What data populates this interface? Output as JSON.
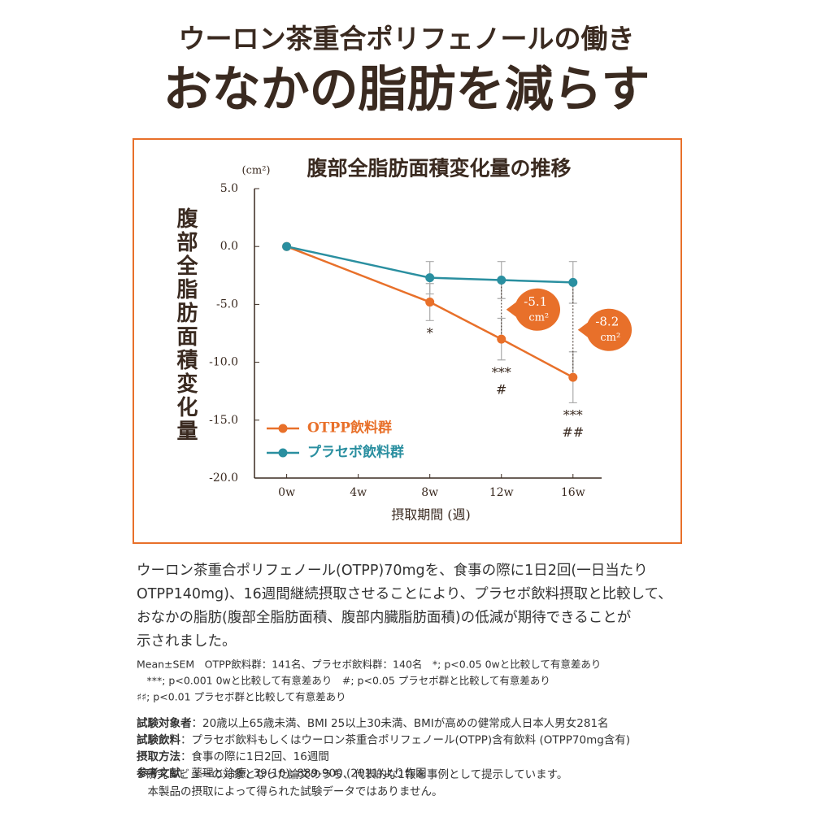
{
  "header": {
    "subtitle": "ウーロン茶重合ポリフェノールの働き",
    "title": "おなかの脂肪を減らす"
  },
  "chart_data": {
    "type": "line",
    "title": "腹部全脂肪面積変化量の推移",
    "unit": "(cm²)",
    "y_label": "腹部全脂肪面積変化量",
    "x_label": "摂取期間 (週)",
    "x": [
      0,
      8,
      12,
      16
    ],
    "xlim": [
      -1.8,
      17.6
    ],
    "xticks": [
      {
        "value": 0,
        "label": "0w"
      },
      {
        "value": 4,
        "label": "4w"
      },
      {
        "value": 8,
        "label": "8w"
      },
      {
        "value": 12,
        "label": "12w"
      },
      {
        "value": 16,
        "label": "16w"
      }
    ],
    "ylim": [
      -20,
      5
    ],
    "yticks": [
      {
        "value": 5,
        "label": "5.0"
      },
      {
        "value": 0,
        "label": "0.0"
      },
      {
        "value": -5,
        "label": "-5.0"
      },
      {
        "value": -10,
        "label": "-10.0"
      },
      {
        "value": -15,
        "label": "-15.0"
      },
      {
        "value": -20,
        "label": "-20.0"
      }
    ],
    "series": [
      {
        "name": "OTPP飲料群",
        "color": "#e8702a",
        "values": [
          0,
          -4.8,
          -8.0,
          -11.3
        ],
        "errors": [
          0,
          1.6,
          1.8,
          2.2
        ]
      },
      {
        "name": "プラセボ飲料群",
        "color": "#2a8fa0",
        "values": [
          0,
          -2.7,
          -2.9,
          -3.1
        ],
        "errors": [
          0,
          1.4,
          1.6,
          1.8
        ]
      }
    ],
    "significance": [
      {
        "x": 8,
        "lines": [
          "*"
        ]
      },
      {
        "x": 12,
        "lines": [
          "***",
          "#"
        ]
      },
      {
        "x": 16,
        "lines": [
          "***",
          "##"
        ]
      }
    ],
    "differences": [
      {
        "x": 12,
        "value": -5.1,
        "unit": "cm²"
      },
      {
        "x": 16,
        "value": -8.2,
        "unit": "cm²"
      }
    ],
    "legend": "lower-left"
  },
  "body": {
    "lines": [
      "ウーロン茶重合ポリフェノール(OTPP)70mgを、食事の際に1日2回(一日当たり",
      "OTPP140mg)、16週間継続摂取させることにより、プラセボ飲料摂取と比較して、",
      "おなかの脂肪(腹部全脂肪面積、腹部内臓脂肪面積)の低減が期待できることが",
      "示されました。"
    ]
  },
  "notes": [
    "Mean±SEM　OTPP飲料群：141名、プラセボ飲料群：140名　*; p<0.05 0wと比較して有意差あり",
    "　***; p<0.001 0wと比較して有意差あり　#; p<0.05 プラセボ群と比較して有意差あり",
    "♯♯; p<0.01 プラセボ群と比較して有意差あり"
  ],
  "details": [
    {
      "label": "試験対象者",
      "text": "：20歳以上65歳未満、BMI 25以上30未満、BMIが高めの健常成人日本人男女281名"
    },
    {
      "label": "試験飲料",
      "text": "：プラセボ飲料もしくはウーロン茶重合ポリフェノール(OTPP)含有飲料 (OTPP70mg含有)"
    },
    {
      "label": "摂取方法",
      "text": "：食事の際に1日2回、16週間"
    },
    {
      "label": "参考文献",
      "text": "：薬理と治療, 39(10): 889-900.(2011)より作図"
    }
  ],
  "footnotes": [
    "※研究レビューの対象となった論文のうち、代表的な1報を事例として提示しています。",
    "　本製品の摂取によって得られた試験データではありません。"
  ]
}
